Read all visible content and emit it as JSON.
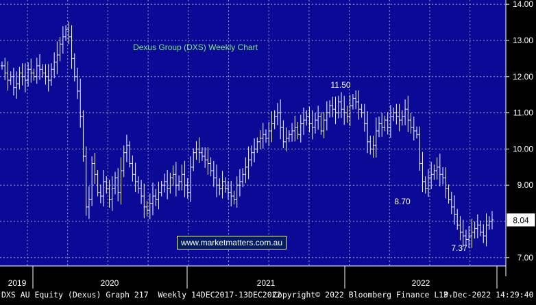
{
  "chart_data": {
    "type": "ohlc-bar",
    "title": "Dexus Group (DXS) Weekly Chart",
    "y_axis": {
      "ticks": [
        7.0,
        8.0,
        9.0,
        10.0,
        11.0,
        12.0,
        13.0,
        14.0
      ],
      "tick_labels": [
        "7.00",
        "8.00",
        "9.00",
        "10.00",
        "11.00",
        "12.00",
        "13.00",
        "14.00"
      ],
      "ylim": [
        6.75,
        14.2
      ],
      "side": "right"
    },
    "x_axis": {
      "year_labels": [
        "2019",
        "2020",
        "2021",
        "2022"
      ]
    },
    "last_price_label": "8.04",
    "last_price": 8.04,
    "annotations": [
      {
        "text": "11.50",
        "value": 11.5
      },
      {
        "text": "8.70",
        "value": 8.7
      },
      {
        "text": "7.37",
        "value": 7.37
      }
    ],
    "grid": true,
    "colors": {
      "background": "#0a0a96",
      "bars": "#ffffff",
      "title": "#7ce87c",
      "grid": "#d0d0d0",
      "axis_panel": "#000000"
    },
    "closes": [
      12.3,
      12.1,
      11.9,
      12.0,
      11.7,
      11.8,
      12.1,
      12.0,
      11.9,
      12.2,
      12.1,
      12.0,
      12.3,
      12.2,
      12.1,
      12.0,
      11.9,
      12.2,
      12.4,
      12.6,
      12.9,
      13.1,
      13.3,
      13.1,
      12.5,
      12.0,
      11.6,
      10.9,
      9.8,
      8.4,
      8.6,
      9.6,
      9.3,
      8.8,
      8.7,
      9.1,
      8.9,
      8.6,
      8.9,
      9.2,
      8.8,
      9.4,
      9.9,
      10.1,
      9.6,
      9.3,
      9.1,
      8.9,
      8.7,
      8.4,
      8.3,
      8.5,
      8.7,
      8.6,
      8.8,
      9.0,
      9.1,
      8.9,
      9.2,
      9.3,
      9.0,
      9.1,
      9.3,
      9.0,
      8.8,
      9.5,
      9.9,
      10.0,
      9.9,
      9.8,
      9.7,
      9.6,
      9.4,
      9.2,
      9.0,
      8.9,
      9.1,
      8.9,
      8.8,
      8.7,
      8.6,
      9.0,
      9.1,
      9.3,
      9.5,
      9.7,
      9.9,
      10.0,
      10.2,
      10.3,
      10.4,
      10.3,
      10.5,
      10.7,
      10.9,
      11.0,
      10.6,
      10.2,
      10.3,
      10.4,
      10.5,
      10.6,
      10.4,
      10.7,
      10.8,
      10.9,
      10.7,
      10.6,
      10.8,
      10.9,
      10.5,
      10.8,
      11.0,
      11.2,
      11.1,
      11.0,
      11.3,
      11.1,
      11.0,
      10.9,
      11.2,
      11.4,
      11.3,
      11.1,
      11.0,
      10.7,
      10.2,
      10.0,
      10.1,
      10.5,
      10.7,
      10.6,
      10.8,
      10.6,
      10.9,
      11.0,
      10.9,
      10.8,
      10.9,
      11.1,
      10.8,
      10.6,
      10.5,
      10.4,
      9.6,
      9.1,
      8.9,
      9.2,
      9.3,
      9.4,
      9.5,
      9.3,
      9.2,
      8.9,
      8.6,
      8.4,
      8.2,
      7.9,
      7.7,
      7.6,
      7.5,
      7.6,
      7.7,
      7.8,
      7.9,
      7.7,
      7.6,
      7.9,
      8.0,
      8.04
    ]
  },
  "footer": {
    "left": "DXS AU Equity (Dexus) Graph 217  Weekly 14DEC2017-13DEC2022",
    "middle": "Copyright© 2022 Bloomberg Finance L.P.",
    "right": "13-Dec-2022 14:29:40"
  },
  "watermark": "www.marketmatters.com.au"
}
